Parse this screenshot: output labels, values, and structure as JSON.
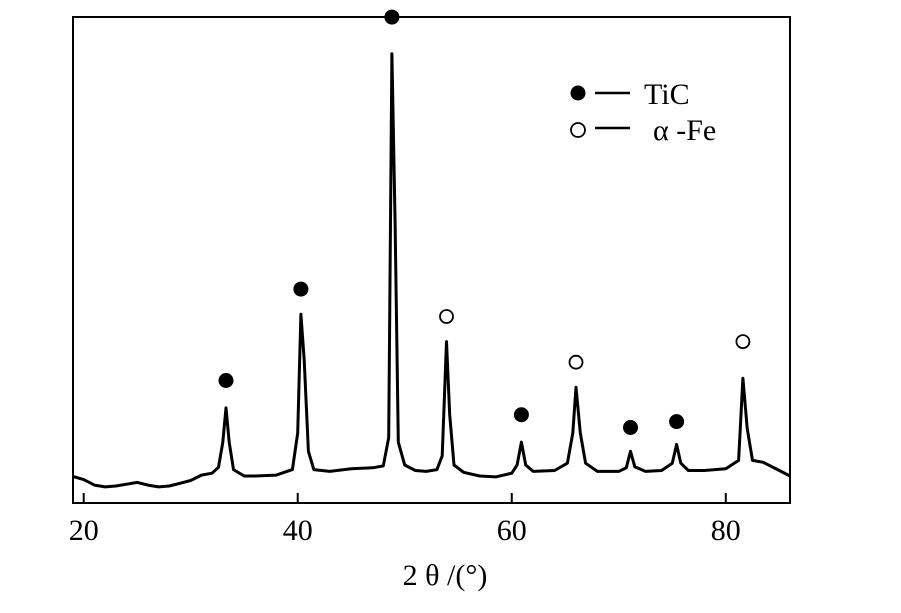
{
  "chart_data": {
    "type": "line",
    "title": "",
    "xlabel": "2 θ /(°)",
    "ylabel": "",
    "xlim": [
      19,
      86
    ],
    "ylim": [
      0,
      100
    ],
    "x_ticks": [
      20,
      40,
      60,
      80
    ],
    "y_ticks": [],
    "grid": false,
    "legend_position": "top-right",
    "series": [
      {
        "points": [
          [
            19,
            4.5
          ],
          [
            20,
            3.8
          ],
          [
            21,
            2.6
          ],
          [
            22,
            2.2
          ],
          [
            23,
            2.4
          ],
          [
            24,
            2.8
          ],
          [
            25,
            3.2
          ],
          [
            26,
            2.6
          ],
          [
            27,
            2.2
          ],
          [
            28,
            2.4
          ],
          [
            29,
            3.0
          ],
          [
            30,
            3.6
          ],
          [
            31,
            4.8
          ],
          [
            32,
            5.2
          ],
          [
            32.6,
            6.5
          ],
          [
            33.0,
            12
          ],
          [
            33.3,
            19.5
          ],
          [
            33.6,
            12
          ],
          [
            34.0,
            6
          ],
          [
            35,
            4.6
          ],
          [
            36,
            4.6
          ],
          [
            38,
            4.8
          ],
          [
            39.5,
            6
          ],
          [
            40.0,
            14
          ],
          [
            40.3,
            40
          ],
          [
            40.6,
            30
          ],
          [
            41.0,
            10
          ],
          [
            41.5,
            6
          ],
          [
            43,
            5.6
          ],
          [
            45,
            6.2
          ],
          [
            47,
            6.4
          ],
          [
            48,
            6.8
          ],
          [
            48.5,
            13
          ],
          [
            48.8,
            97
          ],
          [
            49.1,
            60
          ],
          [
            49.4,
            12
          ],
          [
            50,
            7
          ],
          [
            51,
            5.8
          ],
          [
            52,
            5.6
          ],
          [
            53,
            6
          ],
          [
            53.5,
            9
          ],
          [
            53.9,
            34
          ],
          [
            54.2,
            18
          ],
          [
            54.6,
            7
          ],
          [
            55.5,
            5.4
          ],
          [
            57,
            4.6
          ],
          [
            58.5,
            4.4
          ],
          [
            60,
            5.2
          ],
          [
            60.5,
            7
          ],
          [
            60.9,
            12
          ],
          [
            61.3,
            7
          ],
          [
            62,
            5.6
          ],
          [
            64,
            5.8
          ],
          [
            65.2,
            7.4
          ],
          [
            65.7,
            14
          ],
          [
            66.0,
            24
          ],
          [
            66.4,
            14
          ],
          [
            66.9,
            7.4
          ],
          [
            68,
            5.6
          ],
          [
            70,
            5.6
          ],
          [
            70.7,
            6.4
          ],
          [
            71.1,
            10
          ],
          [
            71.5,
            6.6
          ],
          [
            72.5,
            5.6
          ],
          [
            74,
            5.8
          ],
          [
            75.0,
            7.4
          ],
          [
            75.4,
            11.5
          ],
          [
            75.8,
            7.4
          ],
          [
            76.5,
            5.8
          ],
          [
            78,
            5.8
          ],
          [
            80,
            6.2
          ],
          [
            81.2,
            8
          ],
          [
            81.6,
            26
          ],
          [
            82.0,
            15
          ],
          [
            82.5,
            8
          ],
          [
            83.5,
            7.6
          ],
          [
            85,
            5.8
          ],
          [
            86,
            4.6
          ]
        ]
      }
    ],
    "markers": [
      {
        "x": 33.3,
        "y": 25.5,
        "phase": "TiC"
      },
      {
        "x": 40.3,
        "y": 45.5,
        "phase": "TiC"
      },
      {
        "x": 48.8,
        "y": 105,
        "phase": "TiC"
      },
      {
        "x": 53.9,
        "y": 39.5,
        "phase": "α-Fe"
      },
      {
        "x": 60.9,
        "y": 18,
        "phase": "TiC"
      },
      {
        "x": 66.0,
        "y": 29.5,
        "phase": "α-Fe"
      },
      {
        "x": 71.1,
        "y": 15.2,
        "phase": "TiC"
      },
      {
        "x": 75.4,
        "y": 16.5,
        "phase": "TiC"
      },
      {
        "x": 81.6,
        "y": 34,
        "phase": "α-Fe"
      }
    ],
    "legend": [
      {
        "symbol": "filled-circle",
        "label": "TiC"
      },
      {
        "symbol": "open-circle",
        "label": "α -Fe"
      }
    ]
  }
}
